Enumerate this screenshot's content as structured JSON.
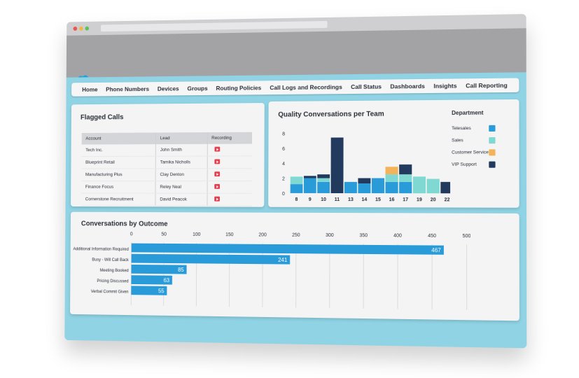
{
  "nav": {
    "items": [
      "Home",
      "Phone Numbers",
      "Devices",
      "Groups",
      "Routing Policies",
      "Call Logs and Recordings",
      "Call Status",
      "Dashboards",
      "Insights",
      "Call Reporting"
    ]
  },
  "flagged_calls": {
    "title": "Flagged Calls",
    "columns": [
      "Account",
      "Lead",
      "Recording"
    ],
    "rows": [
      {
        "account": "Tech Inc.",
        "lead": "John Smith"
      },
      {
        "account": "Blueprint Retail",
        "lead": "Tamika Nicholls"
      },
      {
        "account": "Manufacturing Plus",
        "lead": "Clay Denton"
      },
      {
        "account": "Finance Focus",
        "lead": "Reley Neal"
      },
      {
        "account": "Cornerstone Recruitment",
        "lead": "David Peacok"
      }
    ],
    "recording_icon": "play-icon"
  },
  "quality": {
    "title": "Quality Conversations per Team",
    "legend_title": "Department"
  },
  "outcome": {
    "title": "Conversations by Outcome"
  },
  "colors": {
    "telesales": "#2a9bd9",
    "sales": "#7fd8d2",
    "customer_service": "#f2b35b",
    "vip_support": "#223a5e",
    "hbar": "#2a9bd9",
    "nav_text": "#2a2f36",
    "frame": "#8fd3e4"
  },
  "chart_data": [
    {
      "type": "bar",
      "stacked": true,
      "title": "Quality Conversations per Team",
      "legend_title": "Department",
      "categories": [
        "8",
        "9",
        "10",
        "11",
        "13",
        "14",
        "15",
        "16",
        "17",
        "19",
        "20",
        "22"
      ],
      "series": [
        {
          "name": "Telesales",
          "values": [
            1.2,
            2.0,
            1.5,
            0,
            1.5,
            1.3,
            2.0,
            1.5,
            1.5,
            0,
            0,
            0
          ]
        },
        {
          "name": "Sales",
          "values": [
            1.0,
            0,
            0.5,
            0,
            0,
            0,
            0,
            1.0,
            1.0,
            2.2,
            1.9,
            0
          ]
        },
        {
          "name": "Customer Service",
          "values": [
            0,
            0,
            0,
            0,
            0,
            0,
            0,
            1.0,
            0,
            0,
            0,
            0
          ]
        },
        {
          "name": "VIP Support",
          "values": [
            0,
            0.3,
            0.5,
            7.4,
            0,
            0.7,
            0,
            0,
            1.3,
            0,
            0,
            1.5
          ]
        }
      ],
      "ylim": [
        0,
        8
      ],
      "yticks": [
        0,
        2,
        4,
        6,
        8
      ],
      "legend_position": "right",
      "grid": false
    },
    {
      "type": "bar",
      "orientation": "horizontal",
      "title": "Conversations by Outcome",
      "categories": [
        "Additional Information Required",
        "Busy - Will Call Back",
        "Meeting Booked",
        "Pricing Discussed",
        "Verbal Commit Given"
      ],
      "values": [
        467,
        241,
        85,
        63,
        55
      ],
      "xlim": [
        0,
        500
      ],
      "xticks": [
        0,
        50,
        100,
        150,
        200,
        250,
        300,
        350,
        400,
        450,
        500
      ],
      "grid": true,
      "data_labels": true
    }
  ]
}
